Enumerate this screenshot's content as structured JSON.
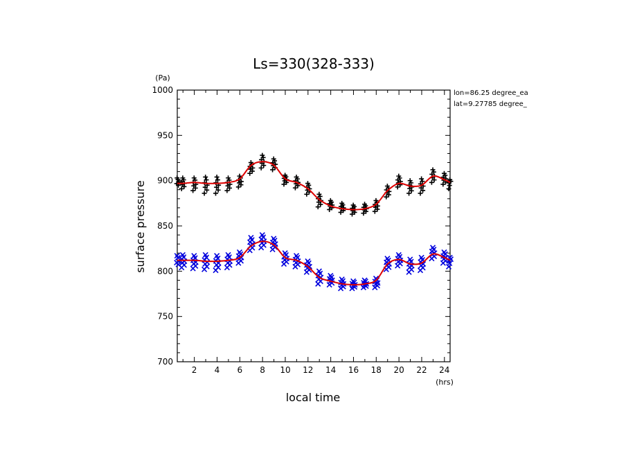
{
  "chart_data": {
    "type": "scatter",
    "title": "Ls=330(328-333)",
    "xlabel": "local time",
    "ylabel": "surface pressure",
    "x_unit": "(hrs)",
    "y_unit": "(Pa)",
    "xlim": [
      0.5,
      24.5
    ],
    "ylim": [
      700,
      1000
    ],
    "x_ticks": [
      2,
      4,
      6,
      8,
      10,
      12,
      14,
      16,
      18,
      20,
      22,
      24
    ],
    "y_ticks": [
      700,
      750,
      800,
      850,
      900,
      950,
      1000
    ],
    "annotations": [
      "lon=86.25 degree_ea",
      "lat=9.27785 degree_"
    ],
    "series": [
      {
        "marker": "+",
        "color": "#000000",
        "x": [
          0.5,
          1,
          2,
          3,
          4,
          5,
          6,
          7,
          8,
          9,
          10,
          11,
          12,
          13,
          14,
          15,
          16,
          17,
          18,
          19,
          20,
          21,
          22,
          23,
          24,
          24.5
        ],
        "y_center": [
          898,
          897,
          896,
          895,
          895,
          896,
          899,
          914,
          921,
          918,
          901,
          898,
          891,
          878,
          873,
          870,
          868,
          869,
          872,
          888,
          899,
          893,
          894,
          905,
          902,
          896
        ],
        "spread": [
          5,
          6,
          7,
          9,
          9,
          7,
          6,
          6,
          7,
          6,
          5,
          6,
          6,
          7,
          5,
          5,
          5,
          5,
          6,
          6,
          6,
          7,
          8,
          7,
          6,
          5
        ]
      },
      {
        "marker": "x",
        "color": "#0000dd",
        "x": [
          0.5,
          1,
          2,
          3,
          4,
          5,
          6,
          7,
          8,
          9,
          10,
          11,
          12,
          13,
          14,
          15,
          16,
          17,
          18,
          19,
          20,
          21,
          22,
          23,
          24,
          24.5
        ],
        "y_center": [
          811,
          811,
          810,
          810,
          809,
          811,
          815,
          830,
          833,
          830,
          814,
          811,
          805,
          793,
          790,
          786,
          785,
          786,
          787,
          808,
          812,
          806,
          808,
          820,
          815,
          810
        ],
        "spread": [
          6,
          7,
          7,
          8,
          8,
          7,
          6,
          7,
          7,
          6,
          6,
          6,
          6,
          7,
          5,
          5,
          4,
          4,
          5,
          6,
          6,
          7,
          7,
          6,
          6,
          5
        ]
      }
    ],
    "fit_lines": [
      {
        "color": "#dd0000",
        "x": [
          0.5,
          1,
          2,
          3,
          4,
          5,
          6,
          7,
          8,
          9,
          10,
          11,
          12,
          13,
          14,
          15,
          16,
          17,
          18,
          19,
          20,
          21,
          22,
          23,
          24,
          24.5
        ],
        "y": [
          897,
          897,
          898,
          897,
          897,
          898,
          902,
          917,
          921,
          917,
          902,
          898,
          891,
          879,
          872,
          869,
          868,
          869,
          874,
          889,
          897,
          894,
          895,
          905,
          901,
          898
        ]
      },
      {
        "color": "#dd0000",
        "x": [
          0.5,
          1,
          2,
          3,
          4,
          5,
          6,
          7,
          8,
          9,
          10,
          11,
          12,
          13,
          14,
          15,
          16,
          17,
          18,
          19,
          20,
          21,
          22,
          23,
          24,
          24.5
        ],
        "y": [
          812,
          812,
          812,
          811,
          811,
          812,
          815,
          828,
          833,
          829,
          815,
          812,
          805,
          793,
          789,
          786,
          785,
          786,
          790,
          808,
          813,
          808,
          809,
          819,
          815,
          812
        ]
      }
    ]
  }
}
